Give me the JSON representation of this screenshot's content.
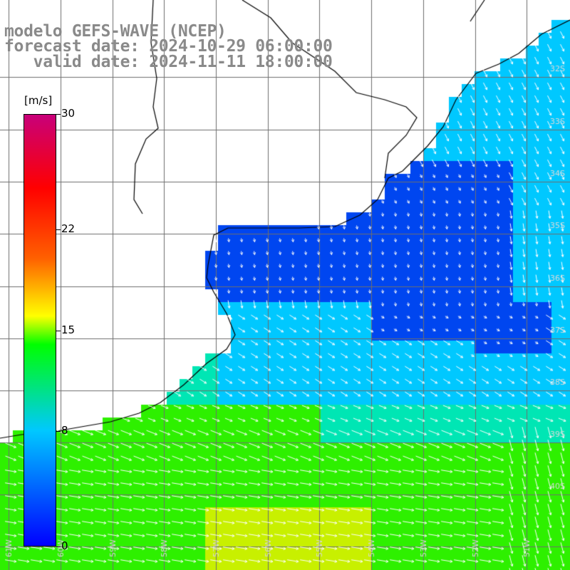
{
  "title": {
    "line1": "modelo GEFS-WAVE (NCEP)",
    "line2": "forecast date: 2024-10-29 06:00:00",
    "line3": "   valid date: 2024-11-11 18:00:00"
  },
  "colorbar": {
    "unit": "[m/s]",
    "min": 0,
    "max": 30,
    "ticks": [
      "30",
      "22",
      "15",
      "8",
      "0"
    ],
    "tick_values": [
      30,
      22,
      15,
      8,
      0
    ],
    "colors": [
      "#0000ff",
      "#00c8ff",
      "#00ff00",
      "#ffff00",
      "#ff6000",
      "#ff0000",
      "#c8007a"
    ]
  },
  "map": {
    "lat_labels": [
      "32S",
      "33S",
      "34S",
      "35S",
      "36S",
      "37S",
      "38S",
      "39S",
      "40S"
    ],
    "lon_labels": [
      "61W",
      "60W",
      "59W",
      "58W",
      "57W",
      "56W",
      "55W",
      "54W",
      "53W",
      "52W",
      "51W"
    ],
    "ocean_colors": {
      "calm": "#0046f0",
      "low": "#00c8ff",
      "mid": "#00e6b4",
      "high": "#2ef000",
      "peak": "#c8f000"
    },
    "land_color": "#ffffff",
    "arrow_color": "#ffffff"
  }
}
